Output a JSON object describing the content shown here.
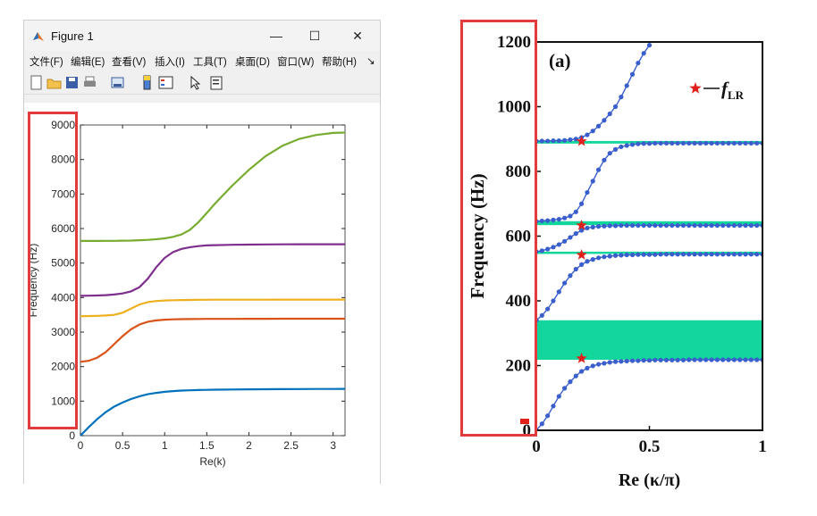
{
  "window": {
    "title": "Figure 1",
    "controls": {
      "minimize": "—",
      "maximize": "☐",
      "close": "✕"
    }
  },
  "menu": [
    "文件(F)",
    "编辑(E)",
    "查看(V)",
    "插入(I)",
    "工具(T)",
    "桌面(D)",
    "窗口(W)",
    "帮助(H)",
    "↘"
  ],
  "toolbar_icons": [
    "new-file-icon",
    "open-folder-icon",
    "save-icon",
    "print-icon",
    "print-preview-icon",
    "colorbar-icon",
    "legend-icon",
    "pointer-icon",
    "property-editor-icon"
  ],
  "left_chart": {
    "chart_data": {
      "type": "line",
      "xlabel": "Re(k)",
      "ylabel": "Frequency (Hz)",
      "xlim": [
        0,
        3.1416
      ],
      "ylim": [
        0,
        9000
      ],
      "xticks": [
        "0",
        "0.5",
        "1",
        "1.5",
        "2",
        "2.5",
        "3"
      ],
      "yticks": [
        "0",
        "1000",
        "2000",
        "3000",
        "4000",
        "5000",
        "6000",
        "7000",
        "8000",
        "9000"
      ],
      "x": [
        0,
        0.1,
        0.2,
        0.3,
        0.4,
        0.5,
        0.6,
        0.7,
        0.8,
        0.9,
        1.0,
        1.1,
        1.2,
        1.3,
        1.4,
        1.5,
        1.6,
        1.8,
        2.0,
        2.2,
        2.4,
        2.6,
        2.8,
        3.0,
        3.1416
      ],
      "series": [
        {
          "color": "#0072bd",
          "values": [
            0,
            250,
            480,
            680,
            840,
            960,
            1060,
            1140,
            1200,
            1240,
            1270,
            1290,
            1305,
            1315,
            1322,
            1328,
            1332,
            1338,
            1342,
            1345,
            1348,
            1350,
            1352,
            1353,
            1354
          ]
        },
        {
          "color": "#d95319",
          "values": [
            2140,
            2170,
            2260,
            2420,
            2650,
            2880,
            3080,
            3220,
            3300,
            3340,
            3360,
            3370,
            3375,
            3378,
            3380,
            3382,
            3383,
            3384,
            3385,
            3386,
            3387,
            3387,
            3388,
            3388,
            3388
          ]
        },
        {
          "color": "#edb120",
          "values": [
            3460,
            3465,
            3470,
            3480,
            3500,
            3560,
            3680,
            3800,
            3870,
            3900,
            3915,
            3922,
            3928,
            3932,
            3935,
            3937,
            3938,
            3939,
            3940,
            3940,
            3941,
            3941,
            3941,
            3941,
            3941
          ]
        },
        {
          "color": "#7e2f8e",
          "values": [
            4050,
            4055,
            4060,
            4070,
            4090,
            4120,
            4180,
            4300,
            4550,
            4880,
            5150,
            5320,
            5410,
            5460,
            5490,
            5510,
            5520,
            5530,
            5535,
            5540,
            5542,
            5544,
            5545,
            5546,
            5546
          ]
        },
        {
          "color": "#77ac30",
          "values": [
            5640,
            5640,
            5641,
            5642,
            5644,
            5647,
            5652,
            5660,
            5672,
            5690,
            5715,
            5760,
            5830,
            5960,
            6180,
            6450,
            6730,
            7240,
            7700,
            8100,
            8400,
            8600,
            8710,
            8770,
            8780
          ]
        }
      ]
    }
  },
  "right_chart": {
    "chart_data": {
      "type": "scatter",
      "panel_label": "(a)",
      "legend_label_main": "f",
      "legend_label_sub": "LR",
      "legend_marker_color": "#e0201a",
      "xlabel": "Re (κ/π)",
      "ylabel": "Frequency (Hz)",
      "xlim": [
        0,
        1
      ],
      "ylim": [
        0,
        1200
      ],
      "xticks": [
        "0",
        "0.5",
        "1"
      ],
      "yticks": [
        "0",
        "200",
        "400",
        "600",
        "800",
        "1000",
        "1200"
      ],
      "point_color": "#3a5fcd",
      "band_color": "#12d69c",
      "bandgaps": [
        [
          218,
          340
        ],
        [
          545,
          552
        ],
        [
          634,
          646
        ],
        [
          886,
          894
        ]
      ],
      "resonance_markers": [
        [
          0.2,
          222
        ],
        [
          0.2,
          542
        ],
        [
          0.2,
          633
        ],
        [
          0.2,
          893
        ]
      ],
      "x": [
        0,
        0.025,
        0.05,
        0.075,
        0.1,
        0.125,
        0.15,
        0.175,
        0.2,
        0.225,
        0.25,
        0.275,
        0.3,
        0.325,
        0.35,
        0.375,
        0.4,
        0.425,
        0.45,
        0.475,
        0.5,
        0.525,
        0.55,
        0.575,
        0.6,
        0.625,
        0.65,
        0.675,
        0.7,
        0.725,
        0.75,
        0.775,
        0.8,
        0.825,
        0.85,
        0.875,
        0.9,
        0.925,
        0.95,
        0.975,
        1.0
      ],
      "series": [
        {
          "values": [
            0,
            20,
            45,
            75,
            105,
            130,
            150,
            168,
            182,
            192,
            199,
            204,
            207,
            210,
            212,
            213,
            214,
            215,
            215,
            216,
            216,
            217,
            217,
            217,
            217,
            217,
            217,
            218,
            218,
            218,
            218,
            218,
            218,
            218,
            218,
            218,
            218,
            218,
            218,
            218,
            218
          ]
        },
        {
          "values": [
            340,
            355,
            375,
            400,
            428,
            455,
            478,
            498,
            512,
            522,
            528,
            533,
            536,
            538,
            540,
            541,
            542,
            542,
            543,
            543,
            543,
            543,
            544,
            544,
            544,
            544,
            544,
            544,
            544,
            544,
            544,
            544,
            544,
            544,
            544,
            544,
            544,
            544,
            544,
            544,
            544
          ]
        },
        {
          "values": [
            552,
            555,
            560,
            566,
            574,
            584,
            596,
            608,
            618,
            625,
            628,
            630,
            631,
            632,
            632,
            633,
            633,
            633,
            633,
            633,
            633,
            633,
            633,
            633,
            633,
            633,
            633,
            633,
            633,
            633,
            633,
            633,
            633,
            633,
            633,
            633,
            633,
            633,
            633,
            633,
            633
          ]
        },
        {
          "values": [
            646,
            647,
            648,
            650,
            652,
            656,
            662,
            675,
            700,
            735,
            770,
            805,
            835,
            856,
            868,
            876,
            880,
            883,
            885,
            886,
            886,
            887,
            887,
            887,
            887,
            887,
            887,
            887,
            887,
            887,
            887,
            887,
            887,
            887,
            887,
            887,
            887,
            887,
            887,
            887,
            887
          ]
        },
        {
          "values": [
            894,
            894,
            894,
            895,
            895,
            896,
            898,
            900,
            905,
            913,
            925,
            940,
            958,
            978,
            1000,
            1030,
            1065,
            1100,
            1135,
            1165,
            1190
          ]
        }
      ]
    }
  }
}
